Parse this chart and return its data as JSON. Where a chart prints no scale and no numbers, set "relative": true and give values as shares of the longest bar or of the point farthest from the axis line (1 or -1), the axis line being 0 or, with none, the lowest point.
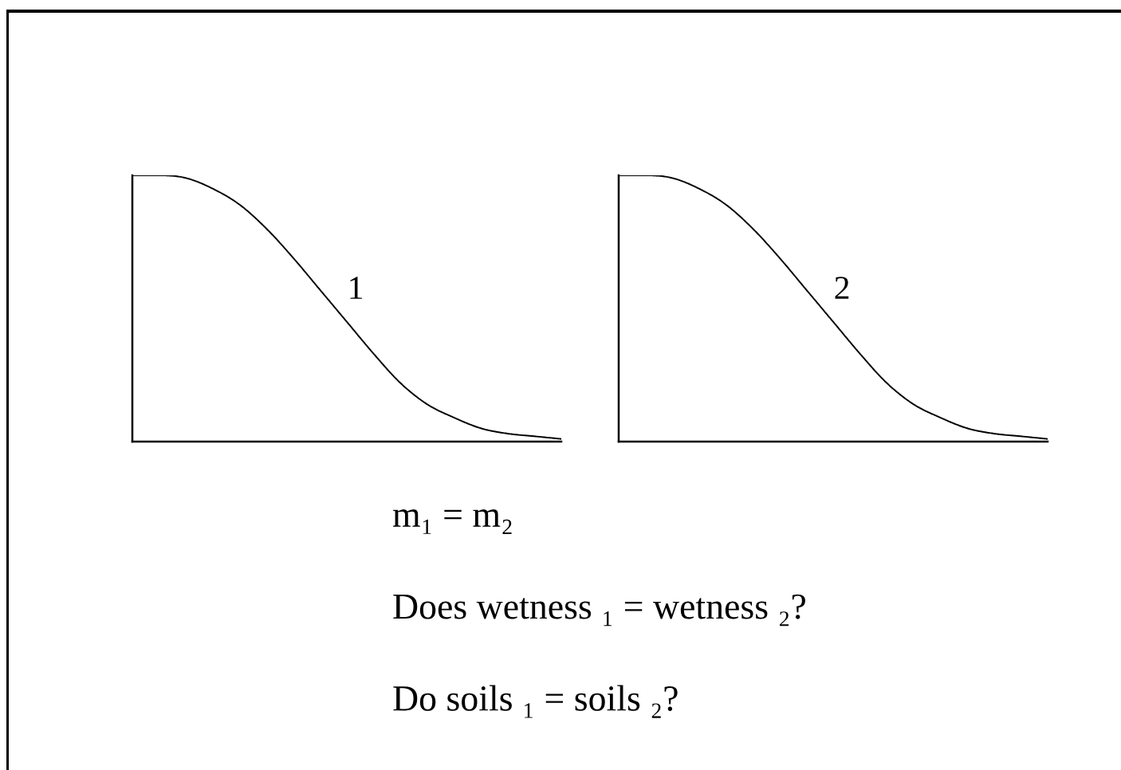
{
  "chart_data": [
    {
      "type": "line",
      "relative": true,
      "categories": [
        null,
        null,
        null,
        null,
        null,
        null,
        null,
        null,
        null,
        null,
        null,
        null,
        null,
        null,
        null,
        null,
        null
      ],
      "series": [
        {
          "name": "1",
          "color": "#000000",
          "values": [
            1.0,
            1.0,
            0.99,
            0.95,
            0.89,
            0.8,
            0.69,
            0.57,
            0.45,
            0.33,
            0.22,
            0.14,
            0.09,
            0.05,
            0.03,
            0.02,
            0.01
          ]
        }
      ]
    },
    {
      "type": "line",
      "relative": true,
      "categories": [
        null,
        null,
        null,
        null,
        null,
        null,
        null,
        null,
        null,
        null,
        null,
        null,
        null,
        null,
        null,
        null,
        null
      ],
      "series": [
        {
          "name": "2",
          "color": "#000000",
          "values": [
            1.0,
            1.0,
            0.99,
            0.95,
            0.89,
            0.8,
            0.69,
            0.57,
            0.45,
            0.33,
            0.22,
            0.14,
            0.09,
            0.05,
            0.03,
            0.02,
            0.01
          ]
        }
      ]
    },
    {
      "type": "other",
      "annotations": [
        "m₁ = m₂",
        "Does wetness ₁ = wetness ₂?",
        "Do soils ₁ = soils ₂?"
      ]
    }
  ]
}
